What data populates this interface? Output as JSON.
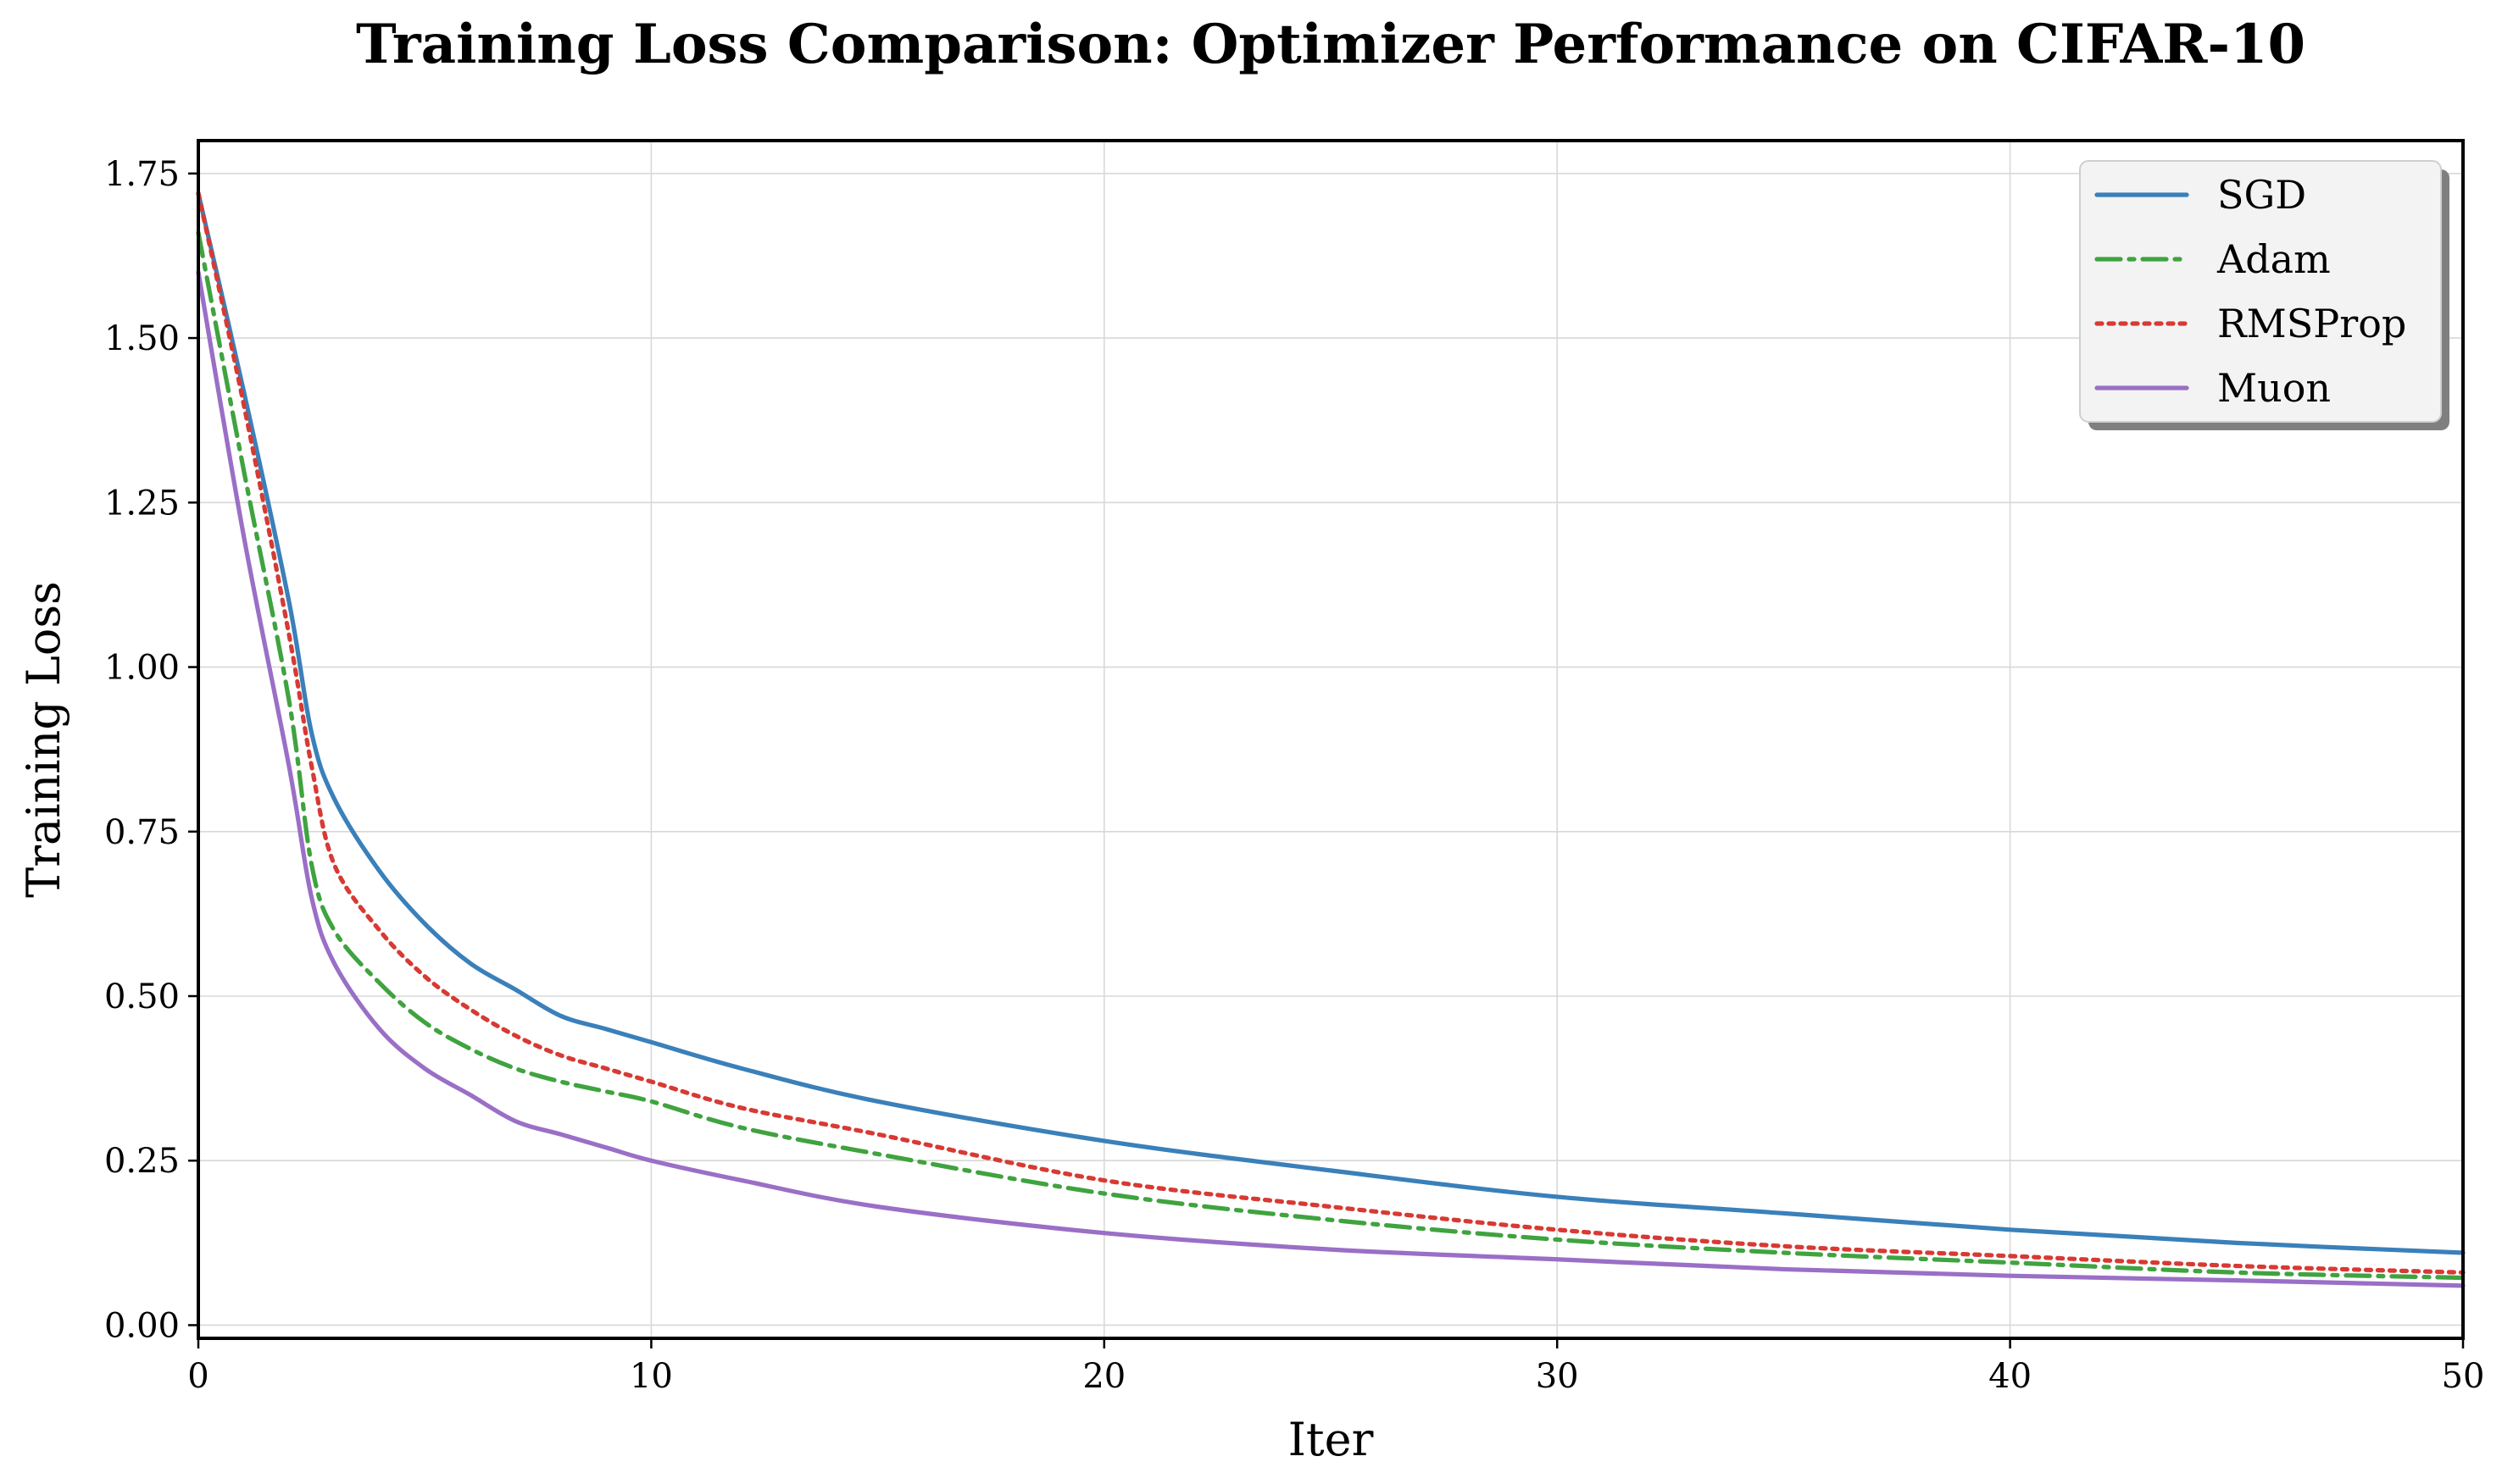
{
  "chart_data": {
    "type": "line",
    "title": "Training Loss Comparison: Optimizer Performance on CIFAR-10",
    "xlabel": "Iter",
    "ylabel": "Training Loss",
    "xlim": [
      0,
      50
    ],
    "ylim": [
      -0.02,
      1.8
    ],
    "xticks": [
      "0",
      "10",
      "20",
      "30",
      "40",
      "50"
    ],
    "yticks": [
      "0.00",
      "0.25",
      "0.50",
      "0.75",
      "1.00",
      "1.25",
      "1.50",
      "1.75"
    ],
    "grid": true,
    "legend_position": "top-right",
    "x": [
      0,
      1,
      2,
      2.5,
      3,
      4,
      5,
      6,
      7,
      8,
      9,
      10,
      12,
      15,
      20,
      25,
      30,
      35,
      40,
      45,
      50
    ],
    "series": [
      {
        "name": "SGD",
        "color": "#3a80ba",
        "style": "solid",
        "values": [
          1.72,
          1.42,
          1.1,
          0.9,
          0.8,
          0.69,
          0.61,
          0.55,
          0.51,
          0.47,
          0.45,
          0.43,
          0.39,
          0.34,
          0.28,
          0.235,
          0.195,
          0.17,
          0.145,
          0.125,
          0.11
        ]
      },
      {
        "name": "Adam",
        "color": "#3fa33f",
        "style": "dashdot",
        "values": [
          1.66,
          1.3,
          0.95,
          0.7,
          0.6,
          0.52,
          0.46,
          0.42,
          0.39,
          0.37,
          0.355,
          0.34,
          0.3,
          0.26,
          0.2,
          0.16,
          0.13,
          0.11,
          0.095,
          0.08,
          0.072
        ]
      },
      {
        "name": "RMSProp",
        "color": "#d73a33",
        "style": "dotted",
        "values": [
          1.72,
          1.4,
          1.05,
          0.85,
          0.7,
          0.6,
          0.53,
          0.48,
          0.44,
          0.41,
          0.39,
          0.37,
          0.33,
          0.29,
          0.22,
          0.18,
          0.145,
          0.12,
          0.105,
          0.09,
          0.08
        ]
      },
      {
        "name": "Muon",
        "color": "#9a6fc6",
        "style": "solid",
        "values": [
          1.6,
          1.2,
          0.85,
          0.65,
          0.55,
          0.45,
          0.39,
          0.35,
          0.31,
          0.29,
          0.27,
          0.25,
          0.22,
          0.18,
          0.14,
          0.115,
          0.1,
          0.085,
          0.075,
          0.068,
          0.06
        ]
      }
    ]
  }
}
